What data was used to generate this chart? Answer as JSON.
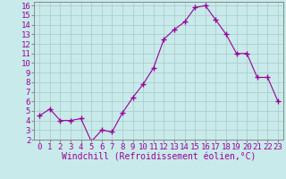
{
  "x": [
    0,
    1,
    2,
    3,
    4,
    5,
    6,
    7,
    8,
    9,
    10,
    11,
    12,
    13,
    14,
    15,
    16,
    17,
    18,
    19,
    20,
    21,
    22,
    23
  ],
  "y": [
    4.5,
    5.2,
    4.0,
    4.0,
    4.2,
    1.8,
    3.0,
    2.8,
    4.8,
    6.4,
    7.8,
    9.5,
    12.5,
    13.5,
    14.3,
    15.8,
    16.0,
    14.5,
    13.0,
    11.0,
    11.0,
    8.5,
    8.5,
    6.0
  ],
  "color": "#990099",
  "bg_color": "#c8eaea",
  "grid_color": "#a8c8c8",
  "xlabel": "Windchill (Refroidissement éolien,°C)",
  "ylim": [
    2,
    16.4
  ],
  "xlim": [
    -0.5,
    23.5
  ],
  "yticks": [
    2,
    3,
    4,
    5,
    6,
    7,
    8,
    9,
    10,
    11,
    12,
    13,
    14,
    15,
    16
  ],
  "xticks": [
    0,
    1,
    2,
    3,
    4,
    5,
    6,
    7,
    8,
    9,
    10,
    11,
    12,
    13,
    14,
    15,
    16,
    17,
    18,
    19,
    20,
    21,
    22,
    23
  ],
  "tick_color": "#990099",
  "label_fontsize": 7,
  "tick_fontsize": 6.5,
  "marker": "+",
  "markersize": 4,
  "linewidth": 0.8,
  "spine_color": "#888888"
}
